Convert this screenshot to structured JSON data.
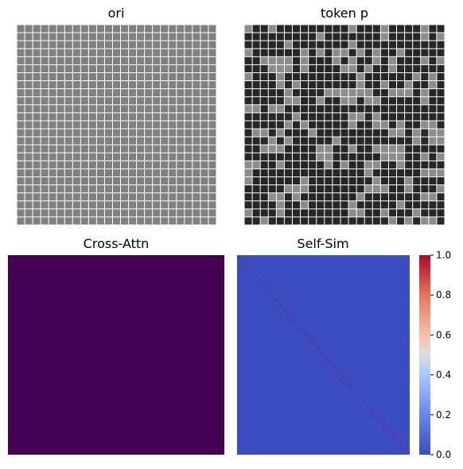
{
  "chart_data": [
    {
      "type": "heatmap",
      "title": "ori",
      "rows": 25,
      "cols": 25,
      "cell_color": "#808080",
      "grid_line_color": "#ffffff",
      "legend": "none"
    },
    {
      "type": "heatmap",
      "title": "token p",
      "rows": 25,
      "cols": 25,
      "dark_color": "#262626",
      "light_color": "#8c8c8c",
      "grid_line_color": "#ffffff",
      "light_fraction": 0.27,
      "legend": "none"
    },
    {
      "type": "heatmap",
      "title": "Cross-Attn",
      "fill_color": "#440154",
      "value": 0,
      "legend": "none"
    },
    {
      "type": "heatmap",
      "title": "Self-Sim",
      "background_value": 0.0,
      "diagonal_value": 1.0,
      "colormap": "coolwarm",
      "colorbar": {
        "ticks": [
          "0.0",
          "0.2",
          "0.4",
          "0.6",
          "0.8",
          "1.0"
        ],
        "range": [
          0.0,
          1.0
        ],
        "placement": "right"
      }
    }
  ]
}
